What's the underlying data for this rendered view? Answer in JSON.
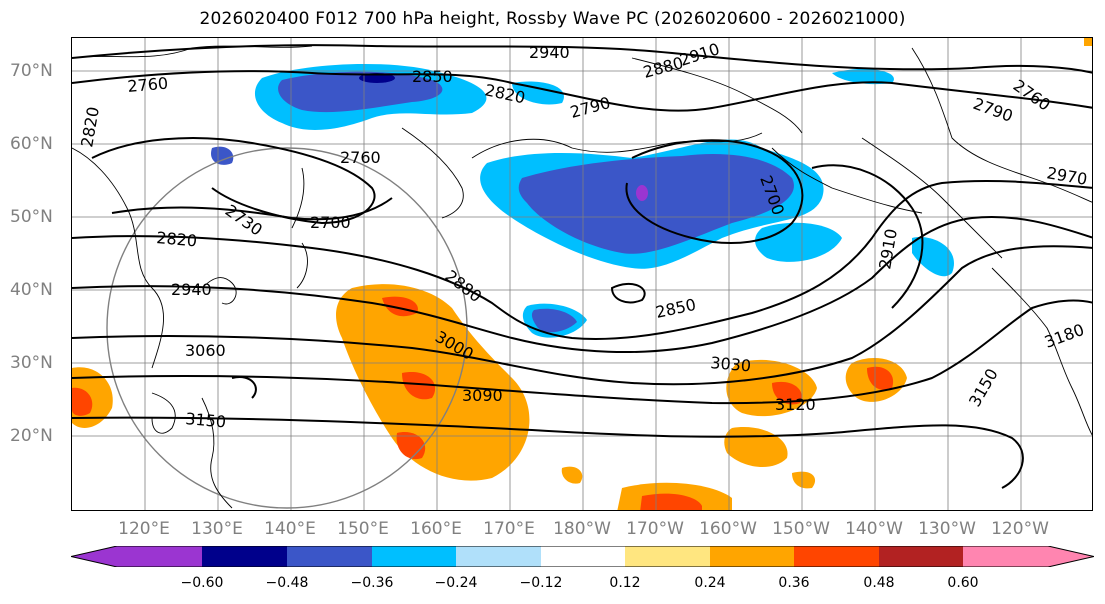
{
  "title": "2026020400 F012 700 hPa height, Rossby Wave PC (2026020600 - 2026021000)",
  "lat_labels": [
    "70°N",
    "60°N",
    "50°N",
    "40°N",
    "30°N",
    "20°N"
  ],
  "lon_labels": [
    "120°E",
    "130°E",
    "140°E",
    "150°E",
    "160°E",
    "170°E",
    "180°W",
    "170°W",
    "160°W",
    "150°W",
    "140°W",
    "130°W",
    "120°W"
  ],
  "contour_labels": [
    "2940",
    "2910",
    "2880",
    "2850",
    "2820",
    "2790",
    "2760",
    "2790",
    "2760",
    "2820",
    "2760",
    "2730",
    "2700",
    "2820",
    "2940",
    "3060",
    "2880",
    "3000",
    "3090",
    "3150",
    "2850",
    "3030",
    "3120",
    "2910",
    "2970",
    "3180",
    "3150",
    "2700"
  ],
  "colorbar": {
    "tick_labels": [
      "−0.60",
      "−0.48",
      "−0.36",
      "−0.24",
      "−0.12",
      "0.12",
      "0.24",
      "0.36",
      "0.48",
      "0.60"
    ],
    "colors": [
      "#9b35d1",
      "#00008b",
      "#3b56c8",
      "#00bfff",
      "#b0e0fa",
      "#ffffff",
      "#ffe680",
      "#ffa500",
      "#ff4500",
      "#b22222",
      "#ff85b0"
    ]
  }
}
